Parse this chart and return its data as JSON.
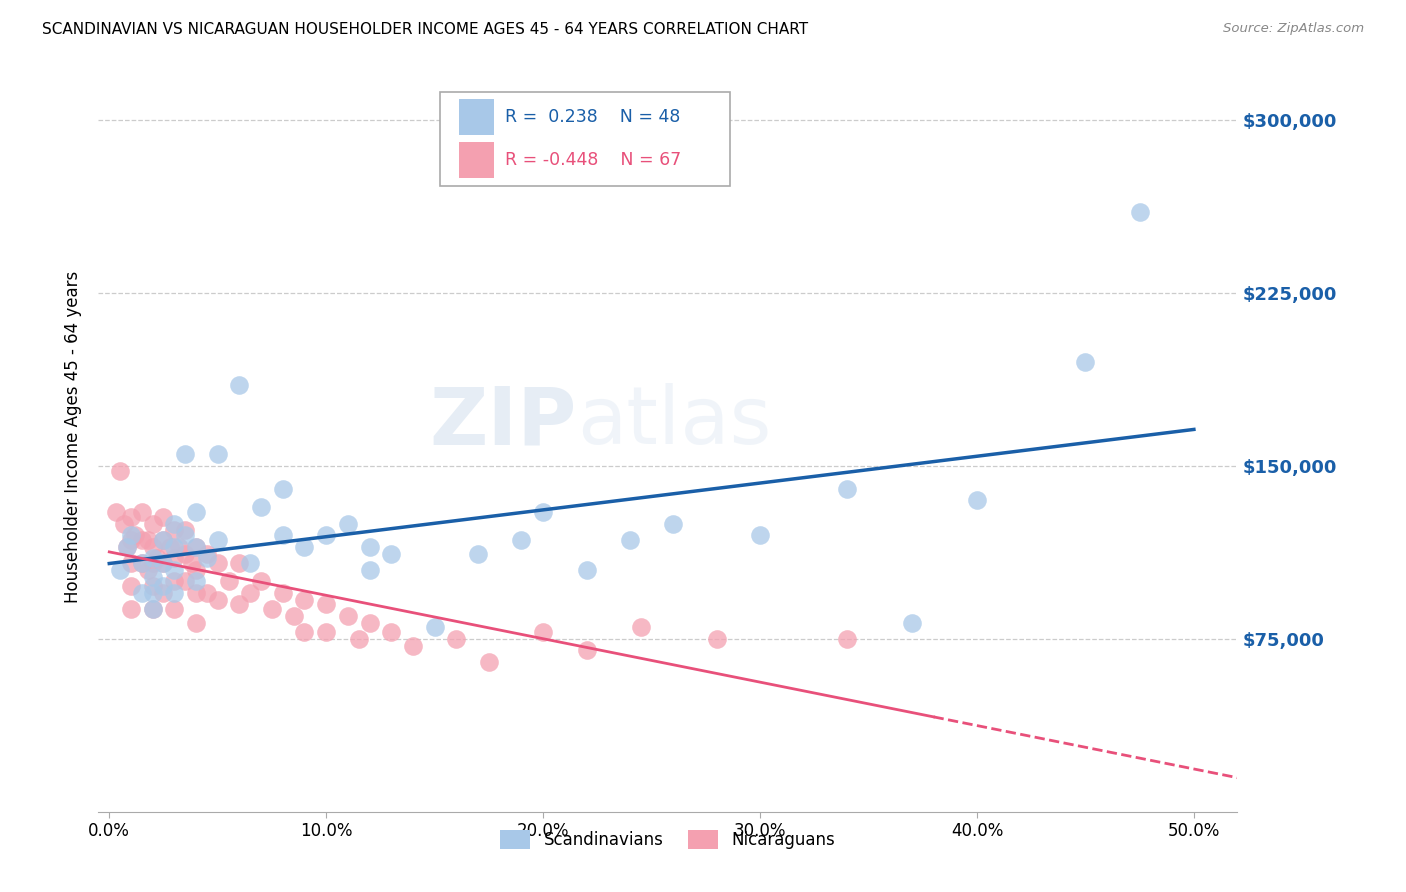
{
  "title": "SCANDINAVIAN VS NICARAGUAN HOUSEHOLDER INCOME AGES 45 - 64 YEARS CORRELATION CHART",
  "source": "Source: ZipAtlas.com",
  "ylabel": "Householder Income Ages 45 - 64 years",
  "xlabel_ticks": [
    "0.0%",
    "10.0%",
    "20.0%",
    "30.0%",
    "40.0%",
    "50.0%"
  ],
  "xlabel_vals": [
    0.0,
    0.1,
    0.2,
    0.3,
    0.4,
    0.5
  ],
  "ytick_labels": [
    "$75,000",
    "$150,000",
    "$225,000",
    "$300,000"
  ],
  "ytick_vals": [
    75000,
    150000,
    225000,
    300000
  ],
  "ylim": [
    0,
    325000
  ],
  "xlim": [
    -0.005,
    0.52
  ],
  "watermark_zip": "ZIP",
  "watermark_atlas": "atlas",
  "legend_blue_R": "R =  0.238",
  "legend_blue_N": "N = 48",
  "legend_pink_R": "R = -0.448",
  "legend_pink_N": "N = 67",
  "scandinavian_color": "#a8c8e8",
  "nicaraguan_color": "#f4a0b0",
  "blue_line_color": "#1a5fa8",
  "pink_line_color": "#e8507a",
  "tick_color": "#1a5fa8",
  "grid_color": "#cccccc",
  "scandinavian_x": [
    0.005,
    0.008,
    0.01,
    0.015,
    0.015,
    0.02,
    0.02,
    0.02,
    0.02,
    0.025,
    0.025,
    0.025,
    0.03,
    0.03,
    0.03,
    0.03,
    0.035,
    0.035,
    0.04,
    0.04,
    0.04,
    0.045,
    0.05,
    0.05,
    0.06,
    0.065,
    0.07,
    0.08,
    0.08,
    0.09,
    0.1,
    0.11,
    0.12,
    0.12,
    0.13,
    0.15,
    0.17,
    0.19,
    0.2,
    0.22,
    0.24,
    0.26,
    0.3,
    0.34,
    0.37,
    0.4,
    0.45,
    0.475
  ],
  "scandinavian_y": [
    105000,
    115000,
    120000,
    108000,
    95000,
    110000,
    102000,
    95000,
    88000,
    118000,
    108000,
    98000,
    125000,
    115000,
    105000,
    95000,
    155000,
    120000,
    130000,
    115000,
    100000,
    110000,
    155000,
    118000,
    185000,
    108000,
    132000,
    140000,
    120000,
    115000,
    120000,
    125000,
    115000,
    105000,
    112000,
    80000,
    112000,
    118000,
    130000,
    105000,
    118000,
    125000,
    120000,
    140000,
    82000,
    135000,
    195000,
    260000
  ],
  "nicaraguan_x": [
    0.003,
    0.005,
    0.007,
    0.008,
    0.01,
    0.01,
    0.01,
    0.01,
    0.01,
    0.012,
    0.015,
    0.015,
    0.015,
    0.018,
    0.018,
    0.02,
    0.02,
    0.02,
    0.02,
    0.02,
    0.022,
    0.025,
    0.025,
    0.025,
    0.025,
    0.028,
    0.03,
    0.03,
    0.03,
    0.03,
    0.032,
    0.035,
    0.035,
    0.035,
    0.038,
    0.04,
    0.04,
    0.04,
    0.04,
    0.045,
    0.045,
    0.05,
    0.05,
    0.055,
    0.06,
    0.06,
    0.065,
    0.07,
    0.075,
    0.08,
    0.085,
    0.09,
    0.09,
    0.1,
    0.1,
    0.11,
    0.115,
    0.12,
    0.13,
    0.14,
    0.16,
    0.175,
    0.2,
    0.22,
    0.245,
    0.28,
    0.34
  ],
  "nicaraguan_y": [
    130000,
    148000,
    125000,
    115000,
    128000,
    118000,
    108000,
    98000,
    88000,
    120000,
    130000,
    118000,
    108000,
    118000,
    105000,
    125000,
    115000,
    108000,
    98000,
    88000,
    110000,
    128000,
    118000,
    108000,
    95000,
    115000,
    122000,
    110000,
    100000,
    88000,
    115000,
    122000,
    112000,
    100000,
    108000,
    115000,
    105000,
    95000,
    82000,
    112000,
    95000,
    108000,
    92000,
    100000,
    108000,
    90000,
    95000,
    100000,
    88000,
    95000,
    85000,
    92000,
    78000,
    90000,
    78000,
    85000,
    75000,
    82000,
    78000,
    72000,
    75000,
    65000,
    78000,
    70000,
    80000,
    75000,
    75000
  ]
}
